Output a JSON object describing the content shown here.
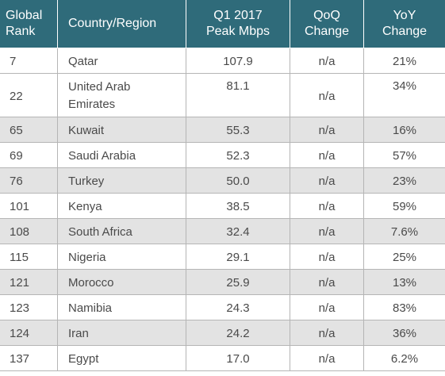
{
  "table": {
    "headers": {
      "rank": "Global\nRank",
      "country": "Country/Region",
      "peak": "Q1 2017\nPeak Mbps",
      "qoq": "QoQ\nChange",
      "yoy": "YoY\nChange"
    },
    "rows": [
      {
        "rank": "7",
        "country": "Qatar",
        "peak": "107.9",
        "qoq": "n/a",
        "yoy": "21%"
      },
      {
        "rank": "22",
        "country": "United Arab Emirates",
        "peak": "81.1",
        "qoq": "n/a",
        "yoy": "34%"
      },
      {
        "rank": "65",
        "country": "Kuwait",
        "peak": "55.3",
        "qoq": "n/a",
        "yoy": "16%"
      },
      {
        "rank": "69",
        "country": "Saudi Arabia",
        "peak": "52.3",
        "qoq": "n/a",
        "yoy": "57%"
      },
      {
        "rank": "76",
        "country": "Turkey",
        "peak": "50.0",
        "qoq": "n/a",
        "yoy": "23%"
      },
      {
        "rank": "101",
        "country": "Kenya",
        "peak": "38.5",
        "qoq": "n/a",
        "yoy": "59%"
      },
      {
        "rank": "108",
        "country": "South Africa",
        "peak": "32.4",
        "qoq": "n/a",
        "yoy": "7.6%"
      },
      {
        "rank": "115",
        "country": "Nigeria",
        "peak": "29.1",
        "qoq": "n/a",
        "yoy": "25%"
      },
      {
        "rank": "121",
        "country": "Morocco",
        "peak": "25.9",
        "qoq": "n/a",
        "yoy": "13%"
      },
      {
        "rank": "123",
        "country": "Namibia",
        "peak": "24.3",
        "qoq": "n/a",
        "yoy": "83%"
      },
      {
        "rank": "124",
        "country": "Iran",
        "peak": "24.2",
        "qoq": "n/a",
        "yoy": "36%"
      },
      {
        "rank": "137",
        "country": "Egypt",
        "peak": "17.0",
        "qoq": "n/a",
        "yoy": "6.2%"
      }
    ]
  },
  "colors": {
    "header_bg": "#2f6b7a",
    "alt_row_bg": "#e3e3e3",
    "grid_line": "#b5b5b5",
    "text": "#4a4a4a"
  }
}
